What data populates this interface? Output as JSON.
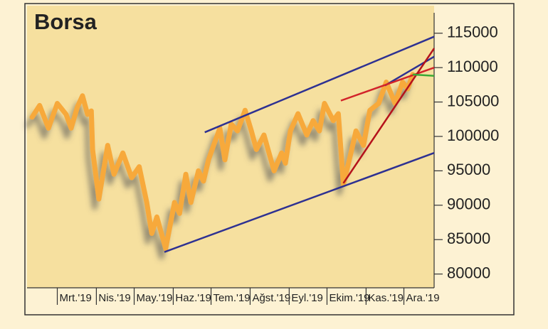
{
  "chart_data": {
    "type": "line",
    "title": "Borsa",
    "x": [
      39,
      45,
      52,
      59,
      66,
      70,
      75,
      79,
      83,
      86,
      87,
      92,
      99,
      104,
      111,
      118,
      124,
      130,
      134,
      138,
      145,
      152,
      156,
      161,
      165,
      171,
      175,
      179,
      183,
      188,
      192,
      197,
      202,
      208,
      213,
      217,
      223,
      231,
      237,
      240,
      244,
      250,
      257,
      262,
      267,
      271,
      278,
      282,
      286,
      292,
      296,
      302,
      307,
      314,
      320,
      327,
      333,
      337,
      341
    ],
    "series": [
      {
        "color": "#f7a93b",
        "values": [
          102800,
          104500,
          101200,
          104800,
          103200,
          101200,
          104300,
          105900,
          103200,
          103700,
          98100,
          90900,
          98700,
          94500,
          97600,
          94000,
          95600,
          90400,
          85900,
          88300,
          83700,
          90400,
          88800,
          94500,
          90400,
          95000,
          93500,
          96600,
          98700,
          101200,
          96600,
          101800,
          100800,
          103800,
          100800,
          98100,
          100200,
          95000,
          97600,
          96100,
          100800,
          103300,
          100200,
          102300,
          100800,
          104800,
          102300,
          103300,
          93000,
          97600,
          100800,
          98700,
          103800,
          104800,
          107900,
          104800,
          107900,
          106900,
          109000
        ]
      }
    ],
    "trend_lines": [
      {
        "color": "#2e3192",
        "x": [
          176,
          358
        ],
        "values": [
          100600,
          114500
        ]
      },
      {
        "color": "#2e3192",
        "x": [
          144,
          358
        ],
        "values": [
          83200,
          97600
        ]
      },
      {
        "color": "#2e3192",
        "x": [
          319,
          358
        ],
        "values": [
          107400,
          111600
        ]
      },
      {
        "color": "#d2232a",
        "x": [
          284,
          358
        ],
        "values": [
          105200,
          110000
        ]
      },
      {
        "color": "#b5121b",
        "x": [
          286,
          358
        ],
        "values": [
          93200,
          112800
        ]
      },
      {
        "color": "#3aa935",
        "x": [
          341,
          358
        ],
        "values": [
          109000,
          108800
        ]
      }
    ],
    "xlim": [
      35,
      358
    ],
    "xticks": [
      {
        "value": 59,
        "label": "Mrt.'19"
      },
      {
        "value": 90,
        "label": "Nis.'19"
      },
      {
        "value": 120,
        "label": "May.'19"
      },
      {
        "value": 151,
        "label": "Haz.'19"
      },
      {
        "value": 181,
        "label": "Tem.'19"
      },
      {
        "value": 212,
        "label": "Ağst.'19"
      },
      {
        "value": 243,
        "label": "Eyl.'19"
      },
      {
        "value": 273,
        "label": "Ekim.'19"
      },
      {
        "value": 304,
        "label": "Kas.'19"
      },
      {
        "value": 334,
        "label": "Ara.'19"
      }
    ],
    "ylim": [
      78000,
      119000
    ],
    "yticks": [
      80000,
      85000,
      90000,
      95000,
      100000,
      105000,
      110000,
      115000
    ]
  }
}
